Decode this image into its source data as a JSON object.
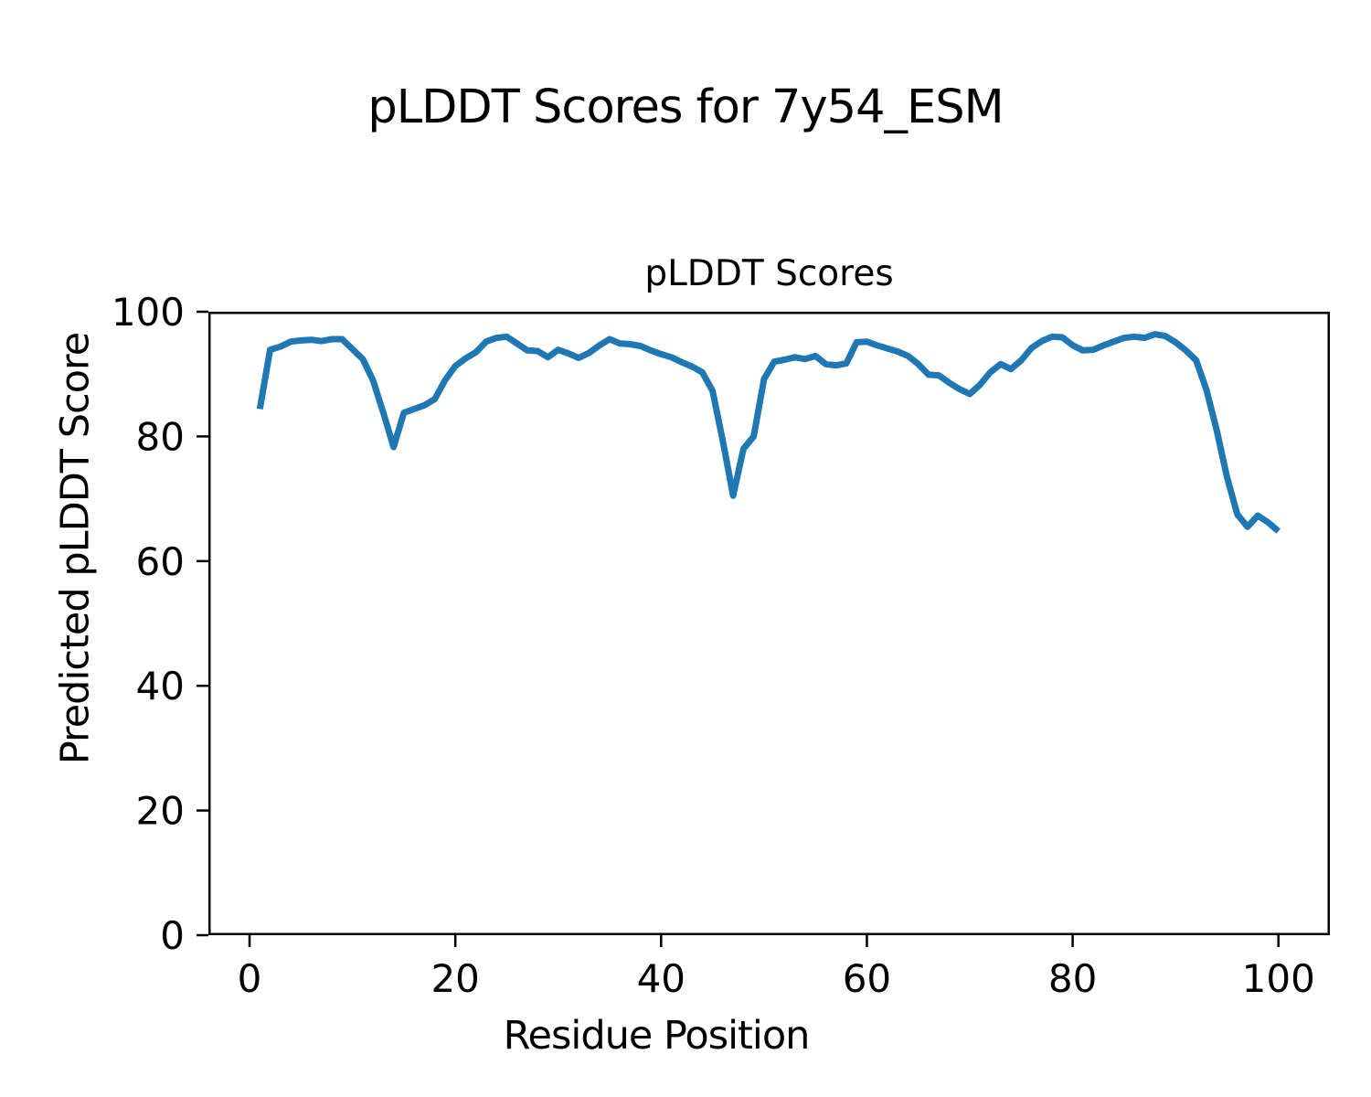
{
  "chart_data": {
    "type": "line",
    "suptitle": "pLDDT Scores for 7y54_ESM",
    "title": "pLDDT Scores",
    "xlabel": "Residue Position",
    "ylabel": "Predicted pLDDT Score",
    "xlim": [
      -4,
      105
    ],
    "ylim": [
      0,
      100
    ],
    "x_ticks": [
      0,
      20,
      40,
      60,
      80,
      100
    ],
    "y_ticks": [
      0,
      20,
      40,
      60,
      80,
      100
    ],
    "grid": false,
    "legend": null,
    "line_color": "#1f77b4",
    "spine_color": "#000000",
    "background_color": "#ffffff",
    "series": [
      {
        "name": "pLDDT",
        "x_start": 1,
        "x_step": 1,
        "values": [
          84.4,
          93.9,
          94.4,
          95.2,
          95.4,
          95.5,
          95.3,
          95.6,
          95.6,
          94.0,
          92.4,
          89.0,
          83.8,
          78.3,
          83.8,
          84.4,
          85.0,
          86.0,
          89.0,
          91.3,
          92.5,
          93.5,
          95.2,
          95.8,
          96.0,
          94.9,
          93.8,
          93.7,
          92.7,
          93.9,
          93.3,
          92.6,
          93.4,
          94.6,
          95.6,
          94.9,
          94.8,
          94.5,
          93.8,
          93.2,
          92.7,
          91.9,
          91.2,
          90.3,
          87.3,
          79.3,
          70.5,
          78.0,
          80.0,
          89.2,
          92.0,
          92.3,
          92.7,
          92.4,
          92.9,
          91.6,
          91.4,
          91.7,
          95.1,
          95.2,
          94.6,
          94.1,
          93.6,
          92.9,
          91.6,
          89.9,
          89.8,
          88.6,
          87.6,
          86.8,
          88.3,
          90.3,
          91.6,
          90.8,
          92.2,
          94.2,
          95.3,
          96.0,
          95.9,
          94.6,
          93.8,
          93.9,
          94.6,
          95.2,
          95.8,
          96.0,
          95.8,
          96.4,
          96.1,
          95.1,
          93.8,
          92.2,
          87.5,
          81.0,
          73.5,
          67.5,
          65.5,
          67.3,
          66.2,
          64.8
        ]
      }
    ]
  }
}
